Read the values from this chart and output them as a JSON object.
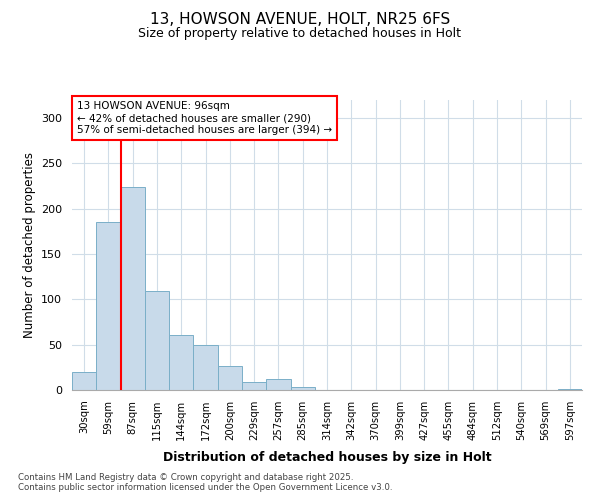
{
  "title1": "13, HOWSON AVENUE, HOLT, NR25 6FS",
  "title2": "Size of property relative to detached houses in Holt",
  "xlabel": "Distribution of detached houses by size in Holt",
  "ylabel": "Number of detached properties",
  "categories": [
    "30sqm",
    "59sqm",
    "87sqm",
    "115sqm",
    "144sqm",
    "172sqm",
    "200sqm",
    "229sqm",
    "257sqm",
    "285sqm",
    "314sqm",
    "342sqm",
    "370sqm",
    "399sqm",
    "427sqm",
    "455sqm",
    "484sqm",
    "512sqm",
    "540sqm",
    "569sqm",
    "597sqm"
  ],
  "values": [
    20,
    185,
    224,
    109,
    61,
    50,
    26,
    9,
    12,
    3,
    0,
    0,
    0,
    0,
    0,
    0,
    0,
    0,
    0,
    0,
    1
  ],
  "bar_color": "#c8daea",
  "bar_edge_color": "#7aafc8",
  "red_line_index": 2,
  "annotation_title": "13 HOWSON AVENUE: 96sqm",
  "annotation_line1": "← 42% of detached houses are smaller (290)",
  "annotation_line2": "57% of semi-detached houses are larger (394) →",
  "ylim": [
    0,
    320
  ],
  "yticks": [
    0,
    50,
    100,
    150,
    200,
    250,
    300
  ],
  "footer1": "Contains HM Land Registry data © Crown copyright and database right 2025.",
  "footer2": "Contains public sector information licensed under the Open Government Licence v3.0.",
  "bg_color": "#ffffff",
  "grid_color": "#d0dde8"
}
